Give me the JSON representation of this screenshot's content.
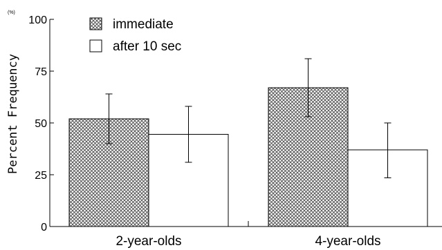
{
  "chart_data": {
    "type": "bar",
    "categories": [
      "2-year-olds",
      "4-year-olds"
    ],
    "series": [
      {
        "name": "immediate",
        "values": [
          52,
          67
        ],
        "error_low": [
          40,
          53
        ],
        "error_high": [
          64,
          81
        ],
        "fill": "crosshatch"
      },
      {
        "name": "after 10 sec",
        "values": [
          44.5,
          37
        ],
        "error_low": [
          31,
          23.5
        ],
        "error_high": [
          58,
          50
        ],
        "fill": "#ffffff"
      }
    ],
    "ylabel": "Percent Frequency",
    "yunit": "(%)",
    "ylim": [
      0,
      100
    ],
    "yticks": [
      "0",
      "25",
      "50",
      "75",
      "100"
    ],
    "legend_position": "top-left",
    "grid": false,
    "colors": {
      "hatch": "#555555",
      "hatch_bg": "#ffffff",
      "outline": "#000000"
    }
  }
}
